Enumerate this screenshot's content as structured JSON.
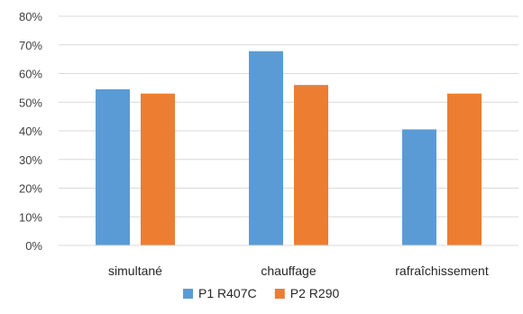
{
  "chart_data": {
    "type": "bar",
    "categories": [
      "simultané",
      "chauffage",
      "rafraîchissement"
    ],
    "series": [
      {
        "name": "P1 R407C",
        "values": [
          54.5,
          67.8,
          40.5
        ],
        "color": "#5B9BD5"
      },
      {
        "name": "P2 R290",
        "values": [
          53.0,
          56.0,
          53.0
        ],
        "color": "#ED7D31"
      }
    ],
    "ylim": [
      0,
      80
    ],
    "yticks": [
      "0%",
      "10%",
      "20%",
      "30%",
      "40%",
      "50%",
      "60%",
      "70%",
      "80%"
    ],
    "grid": true,
    "legend_position": "bottom",
    "title": "",
    "xlabel": "",
    "ylabel": ""
  }
}
